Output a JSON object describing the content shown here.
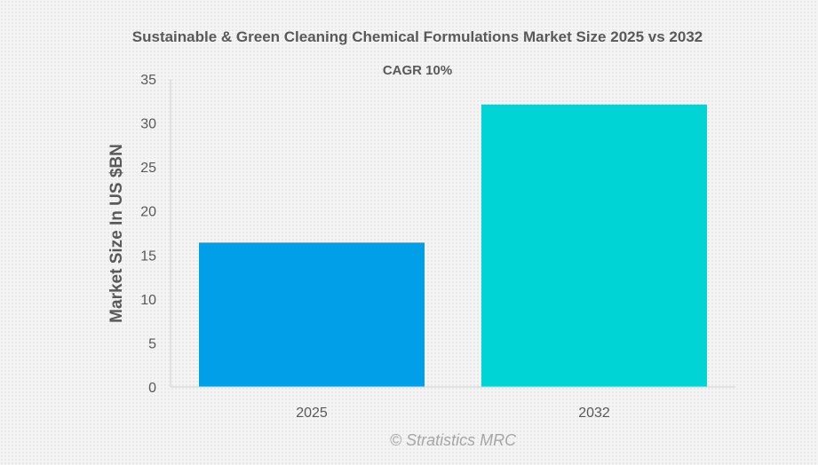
{
  "chart_data": {
    "type": "bar",
    "title": "Sustainable & Green Cleaning Chemical Formulations Market Size 2025 vs 2032",
    "subtitle": "CAGR 10%",
    "xlabel": "",
    "ylabel": "Market Size In US $BN",
    "categories": [
      "2025",
      "2032"
    ],
    "values": [
      16.4,
      32.1
    ],
    "ylim": [
      0,
      35
    ],
    "yticks": [
      0,
      5,
      10,
      15,
      20,
      25,
      30,
      35
    ],
    "colors": [
      "#009fe8",
      "#00d4d4"
    ],
    "grid": false
  },
  "watermark": "© Stratistics MRC"
}
